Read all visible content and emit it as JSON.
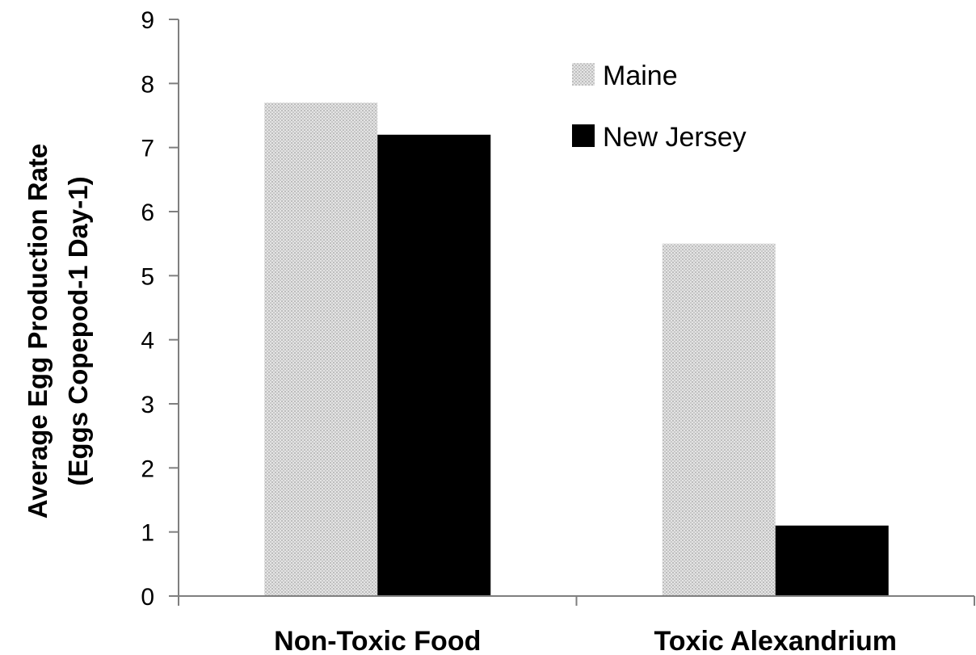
{
  "chart_data": {
    "type": "bar",
    "categories": [
      "Non-Toxic Food",
      "Toxic Alexandrium"
    ],
    "series": [
      {
        "name": "Maine",
        "values": [
          7.7,
          5.5
        ],
        "color": "#d9d9d9",
        "pattern": "dotted-gray"
      },
      {
        "name": "New Jersey",
        "values": [
          7.2,
          1.1
        ],
        "color": "#000000",
        "pattern": "solid"
      }
    ],
    "title": "",
    "xlabel": "",
    "ylabel": [
      "Average Egg Production Rate",
      "(Eggs Copepod-1 Day-1)"
    ],
    "ylim": [
      0,
      9
    ],
    "yticks": [
      0,
      1,
      2,
      3,
      4,
      5,
      6,
      7,
      8,
      9
    ],
    "grid": false,
    "legend": {
      "position": "top-right",
      "entries": [
        "Maine",
        "New Jersey"
      ]
    }
  }
}
